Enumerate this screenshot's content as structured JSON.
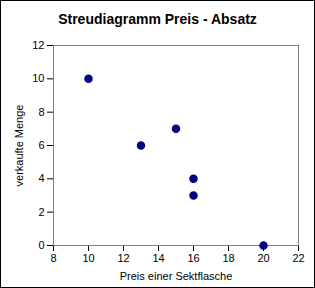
{
  "chart_data": {
    "type": "scatter",
    "title": "Streudiagramm Preis - Absatz",
    "x_label": "Preis einer Sektflasche",
    "y_label": "verkaufte Menge",
    "x": [
      10,
      13,
      15,
      16,
      16,
      20
    ],
    "values": [
      10,
      6,
      7,
      4,
      3,
      0
    ],
    "color": "#000080",
    "marker": "circle",
    "xlim": [
      8,
      22
    ],
    "xticks": [
      8,
      10,
      12,
      14,
      16,
      18,
      20,
      22
    ],
    "ylim": [
      0,
      12
    ],
    "yticks": [
      0,
      2,
      4,
      6,
      8,
      10,
      12
    ],
    "grid": false
  }
}
